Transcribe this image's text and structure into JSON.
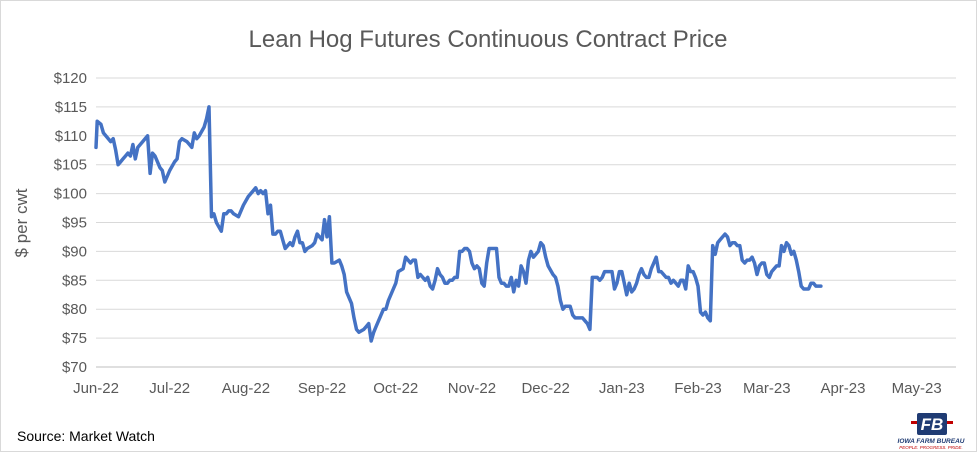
{
  "chart_data": {
    "type": "line",
    "title": "Lean Hog Futures Continuous Contract Price",
    "ylabel": "$ per cwt",
    "xlabel": "",
    "ylim": [
      70,
      120
    ],
    "yticks": [
      70,
      75,
      80,
      85,
      90,
      95,
      100,
      105,
      110,
      115,
      120
    ],
    "ytick_labels": [
      "$70",
      "$75",
      "$80",
      "$85",
      "$90",
      "$95",
      "$100",
      "$105",
      "$110",
      "$115",
      "$120"
    ],
    "xticks": [
      0,
      30,
      61,
      92,
      122,
      153,
      183,
      214,
      245,
      273,
      304,
      334
    ],
    "xtick_labels": [
      "Jun-22",
      "Jul-22",
      "Aug-22",
      "Sep-22",
      "Oct-22",
      "Nov-22",
      "Dec-22",
      "Jan-23",
      "Feb-23",
      "Mar-23",
      "Apr-23",
      "May-23"
    ],
    "xlim": [
      0,
      350
    ],
    "grid": true,
    "legend": "none",
    "series_color": "#4472c4",
    "points": [
      [
        0,
        108
      ],
      [
        0.5,
        112.5
      ],
      [
        2,
        112
      ],
      [
        3,
        110.5
      ],
      [
        5,
        109.5
      ],
      [
        6,
        109
      ],
      [
        7,
        109.5
      ],
      [
        8,
        107.5
      ],
      [
        9,
        105
      ],
      [
        10,
        105.5
      ],
      [
        11,
        106
      ],
      [
        12,
        106.5
      ],
      [
        13,
        107
      ],
      [
        14,
        106.5
      ],
      [
        15,
        108.5
      ],
      [
        16,
        106
      ],
      [
        17,
        108
      ],
      [
        19,
        109
      ],
      [
        20,
        109.5
      ],
      [
        21,
        110
      ],
      [
        22,
        103.5
      ],
      [
        23,
        107
      ],
      [
        24,
        106.5
      ],
      [
        26,
        104.5
      ],
      [
        27,
        104
      ],
      [
        28,
        102
      ],
      [
        30,
        104
      ],
      [
        32,
        105.5
      ],
      [
        33,
        106
      ],
      [
        34,
        109
      ],
      [
        35,
        109.5
      ],
      [
        37,
        109
      ],
      [
        38,
        108.5
      ],
      [
        39,
        108
      ],
      [
        40,
        110.5
      ],
      [
        41,
        109.5
      ],
      [
        42,
        110
      ],
      [
        44,
        111.5
      ],
      [
        45,
        113
      ],
      [
        46,
        115
      ],
      [
        47,
        96
      ],
      [
        48,
        96.5
      ],
      [
        49,
        95
      ],
      [
        51,
        93.5
      ],
      [
        52,
        96.5
      ],
      [
        53,
        96.5
      ],
      [
        54,
        97
      ],
      [
        55,
        97
      ],
      [
        56,
        96.5
      ],
      [
        58,
        96
      ],
      [
        60,
        98
      ],
      [
        62,
        99.5
      ],
      [
        64,
        100.5
      ],
      [
        65,
        101
      ],
      [
        66,
        100
      ],
      [
        67,
        100.5
      ],
      [
        68,
        100
      ],
      [
        69,
        100.5
      ],
      [
        70,
        96.5
      ],
      [
        71,
        98
      ],
      [
        72,
        93
      ],
      [
        73,
        93
      ],
      [
        74,
        93.5
      ],
      [
        75,
        93.5
      ],
      [
        76,
        92
      ],
      [
        77,
        90.5
      ],
      [
        78,
        91
      ],
      [
        79,
        91.5
      ],
      [
        80,
        91
      ],
      [
        81,
        92.5
      ],
      [
        82,
        93.5
      ],
      [
        83,
        91.5
      ],
      [
        84,
        91.5
      ],
      [
        85,
        90
      ],
      [
        86,
        90.5
      ],
      [
        88,
        91
      ],
      [
        89,
        91.5
      ],
      [
        90,
        93
      ],
      [
        91,
        92.5
      ],
      [
        92,
        92
      ],
      [
        93,
        95.5
      ],
      [
        94,
        92.5
      ],
      [
        95,
        96
      ],
      [
        96,
        88
      ],
      [
        97,
        88
      ],
      [
        99,
        88.5
      ],
      [
        100,
        87.5
      ],
      [
        101,
        86
      ],
      [
        102,
        83
      ],
      [
        104,
        81
      ],
      [
        105,
        78.5
      ],
      [
        106,
        76.5
      ],
      [
        107,
        76
      ],
      [
        109,
        76.5
      ],
      [
        110,
        77
      ],
      [
        111,
        77.5
      ],
      [
        112,
        74.5
      ],
      [
        113,
        76
      ],
      [
        114,
        77
      ],
      [
        116,
        79
      ],
      [
        117,
        80
      ],
      [
        118,
        80
      ],
      [
        119,
        81.5
      ],
      [
        121,
        83.5
      ],
      [
        122,
        84.5
      ],
      [
        123,
        86.5
      ],
      [
        125,
        87
      ],
      [
        126,
        89
      ],
      [
        127,
        88.5
      ],
      [
        128,
        88
      ],
      [
        129,
        88.5
      ],
      [
        130,
        88.5
      ],
      [
        131,
        85.5
      ],
      [
        132,
        86
      ],
      [
        133,
        85.5
      ],
      [
        134,
        85
      ],
      [
        135,
        85.5
      ],
      [
        136,
        84
      ],
      [
        137,
        83.5
      ],
      [
        138,
        85
      ],
      [
        139,
        87
      ],
      [
        140,
        86
      ],
      [
        141,
        85.5
      ],
      [
        142,
        84.5
      ],
      [
        143,
        84.5
      ],
      [
        144,
        85
      ],
      [
        145,
        85
      ],
      [
        146,
        85.5
      ],
      [
        147,
        85.5
      ],
      [
        148,
        90
      ],
      [
        149,
        90
      ],
      [
        150,
        90.5
      ],
      [
        151,
        90.5
      ],
      [
        152,
        90
      ],
      [
        153,
        88
      ],
      [
        154,
        87
      ],
      [
        155,
        87.5
      ],
      [
        156,
        87
      ],
      [
        157,
        84.5
      ],
      [
        158,
        84
      ],
      [
        159,
        88
      ],
      [
        160,
        90.5
      ],
      [
        162,
        90.5
      ],
      [
        163,
        90.5
      ],
      [
        164,
        85.5
      ],
      [
        165,
        84.5
      ],
      [
        166,
        84.5
      ],
      [
        167,
        84
      ],
      [
        168,
        84
      ],
      [
        169,
        85.5
      ],
      [
        170,
        83
      ],
      [
        171,
        85
      ],
      [
        172,
        84
      ],
      [
        173,
        87.5
      ],
      [
        174,
        86.5
      ],
      [
        175,
        84.5
      ],
      [
        176,
        88.5
      ],
      [
        177,
        90
      ],
      [
        178,
        89
      ],
      [
        180,
        90
      ],
      [
        181,
        91.5
      ],
      [
        182,
        91
      ],
      [
        183,
        89
      ],
      [
        184,
        87.5
      ],
      [
        186,
        86
      ],
      [
        187,
        85.5
      ],
      [
        188,
        84
      ],
      [
        189,
        81.5
      ],
      [
        190,
        80
      ],
      [
        191,
        80.5
      ],
      [
        192,
        80.5
      ],
      [
        193,
        80.5
      ],
      [
        194,
        79
      ],
      [
        195,
        78.5
      ],
      [
        197,
        78.5
      ],
      [
        198,
        78.5
      ],
      [
        199,
        78
      ],
      [
        200,
        77.5
      ],
      [
        201,
        76.5
      ],
      [
        202,
        85.5
      ],
      [
        203,
        85.5
      ],
      [
        204,
        85.5
      ],
      [
        205,
        85
      ],
      [
        206,
        85.5
      ],
      [
        207,
        86.5
      ],
      [
        208,
        86.5
      ],
      [
        209,
        86.5
      ],
      [
        210,
        86.5
      ],
      [
        211,
        83.5
      ],
      [
        212,
        84.5
      ],
      [
        213,
        86.5
      ],
      [
        214,
        86.5
      ],
      [
        215,
        84.5
      ],
      [
        216,
        82.5
      ],
      [
        217,
        84.5
      ],
      [
        218,
        83
      ],
      [
        219,
        83.5
      ],
      [
        220,
        84.5
      ],
      [
        221,
        86
      ],
      [
        222,
        87
      ],
      [
        223,
        86
      ],
      [
        224,
        85.5
      ],
      [
        225,
        85.5
      ],
      [
        226,
        87
      ],
      [
        227,
        88
      ],
      [
        228,
        89
      ],
      [
        229,
        86.5
      ],
      [
        230,
        86.5
      ],
      [
        231,
        86
      ],
      [
        232,
        85.5
      ],
      [
        233,
        85.5
      ],
      [
        234,
        84.5
      ],
      [
        235,
        85
      ],
      [
        236,
        84.5
      ],
      [
        237,
        84
      ],
      [
        238,
        85
      ],
      [
        239,
        85
      ],
      [
        240,
        83.5
      ],
      [
        241,
        87.5
      ],
      [
        242,
        86.5
      ],
      [
        243,
        86.5
      ],
      [
        244,
        85.5
      ],
      [
        245,
        84
      ],
      [
        246,
        79.5
      ],
      [
        247,
        79
      ],
      [
        248,
        79.5
      ],
      [
        249,
        78.5
      ],
      [
        250,
        78
      ],
      [
        251,
        91
      ],
      [
        252,
        89.5
      ],
      [
        253,
        91.5
      ],
      [
        254,
        92
      ],
      [
        255,
        92.5
      ],
      [
        256,
        93
      ],
      [
        257,
        92.5
      ],
      [
        258,
        91
      ],
      [
        259,
        91.5
      ],
      [
        260,
        91.5
      ],
      [
        261,
        91
      ],
      [
        262,
        91
      ],
      [
        263,
        88.5
      ],
      [
        264,
        88
      ],
      [
        265,
        88.5
      ],
      [
        266,
        88.5
      ],
      [
        267,
        89
      ],
      [
        268,
        88
      ],
      [
        269,
        86
      ],
      [
        270,
        87.5
      ],
      [
        271,
        88
      ],
      [
        272,
        88
      ],
      [
        273,
        86
      ],
      [
        274,
        85.5
      ],
      [
        275,
        86.5
      ],
      [
        276,
        87
      ],
      [
        277,
        87.5
      ],
      [
        278,
        87.5
      ],
      [
        279,
        91
      ],
      [
        280,
        90
      ],
      [
        281,
        91.5
      ],
      [
        282,
        91
      ],
      [
        283,
        89.5
      ],
      [
        284,
        90
      ],
      [
        285,
        88.5
      ],
      [
        286,
        86.5
      ],
      [
        287,
        84
      ],
      [
        288,
        83.5
      ],
      [
        289,
        83.5
      ],
      [
        290,
        83.5
      ],
      [
        291,
        84.5
      ],
      [
        292,
        84.5
      ],
      [
        293,
        84
      ],
      [
        294,
        84
      ],
      [
        295,
        84
      ]
    ]
  },
  "source_note": "Source: Market Watch",
  "logo": {
    "text": "IOWA FARM BUREAU",
    "tagline": "PEOPLE. PROGRESS. PRIDE.",
    "color_primary": "#1f3b73",
    "color_accent": "#c00000"
  }
}
